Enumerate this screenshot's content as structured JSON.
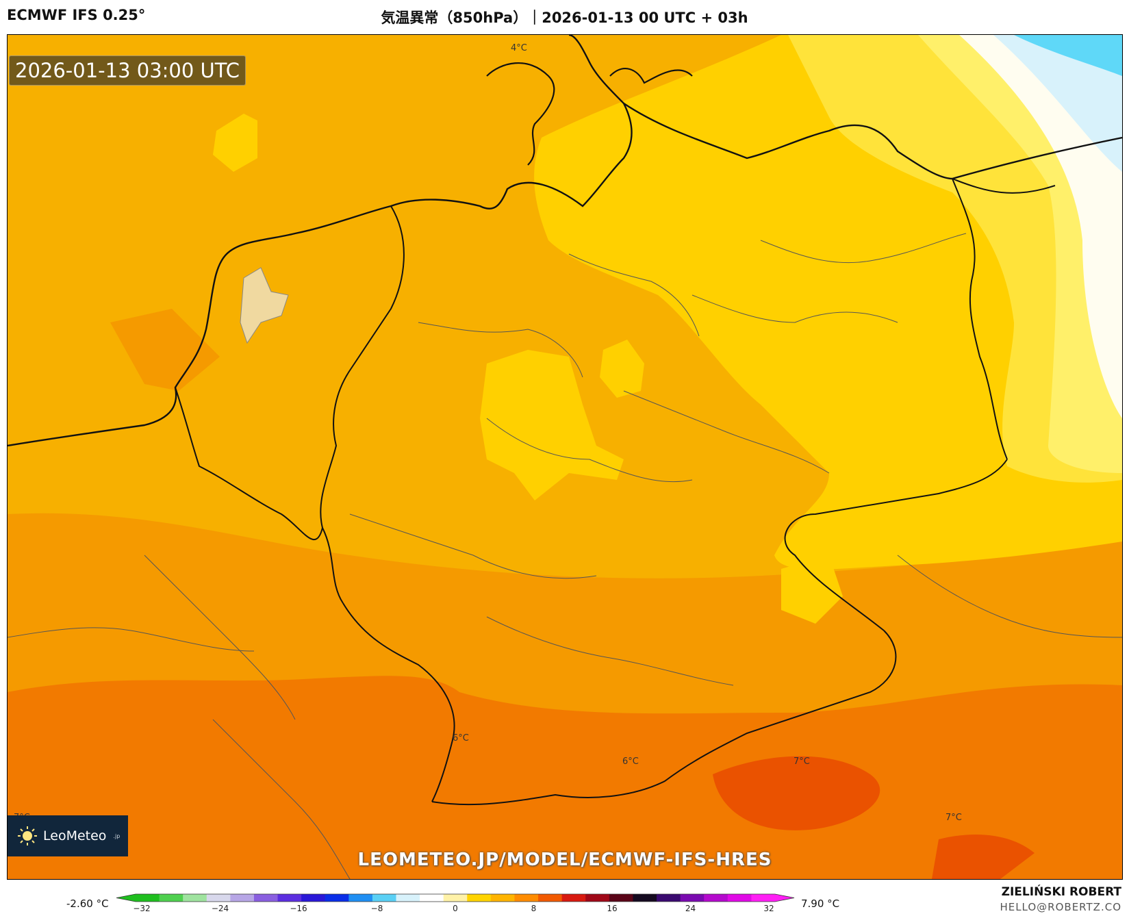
{
  "header": {
    "model": "ECMWF IFS 0.25°",
    "title": "気温異常（850hPa）｜2026-01-13 00 UTC + 03h"
  },
  "map": {
    "valid_time": "2026-01-13 03:00 UTC",
    "website": "LEOMETEO.JP/MODEL/ECMWF-IFS-HRES",
    "logo": {
      "text": "LeoMeteo",
      "suffix": ".jp",
      "icon": "sun-icon"
    },
    "temperature_labels": [
      "4°C",
      "6°C",
      "6°C",
      "7°C",
      "7°C",
      "7°C"
    ]
  },
  "legend": {
    "min_label": "-2.60 °C",
    "max_label": "7.90 °C",
    "ticks": [
      "−32",
      "−24",
      "−16",
      "−8",
      "0",
      "8",
      "16",
      "24",
      "32"
    ],
    "colors": [
      "#1fbf1f",
      "#4fd04f",
      "#9fe39f",
      "#d8d8ec",
      "#b7a6e6",
      "#8a5fe0",
      "#5c2ee0",
      "#2a18d8",
      "#0a2ee8",
      "#1f8ff3",
      "#5ad0f5",
      "#d8f2fb",
      "#ffffff",
      "#fff2a8",
      "#ffd400",
      "#ffb400",
      "#ff8c00",
      "#f25a00",
      "#d81a10",
      "#a00818",
      "#5a0418",
      "#150a20",
      "#3a0a70",
      "#7a0ab0",
      "#b40acd",
      "#e00ae6",
      "#ff1ff5"
    ]
  },
  "author": {
    "name": "ZIELIŃSKI ROBERT",
    "email": "HELLO@ROBERTZ.CO"
  },
  "colors": {
    "anomaly_3": "#f7b000",
    "anomaly_4": "#ffd000",
    "anomaly_5": "#f59a00",
    "anomaly_6": "#f27a00",
    "anomaly_7": "#ea5200",
    "anomaly_2": "#fff06a",
    "anomaly_1": "#fffdf0",
    "anomaly_low": "#5fd8f8"
  }
}
